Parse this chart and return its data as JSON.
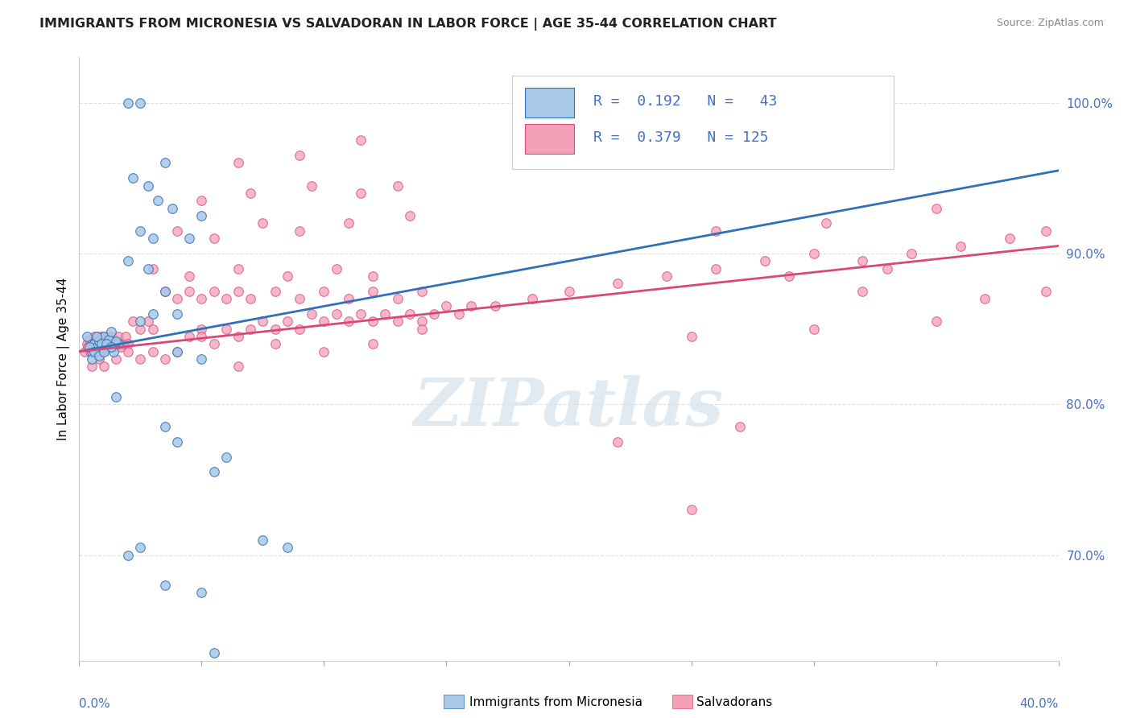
{
  "title": "IMMIGRANTS FROM MICRONESIA VS SALVADORAN IN LABOR FORCE | AGE 35-44 CORRELATION CHART",
  "source": "Source: ZipAtlas.com",
  "ylabel": "In Labor Force | Age 35-44",
  "yticks": [
    100.0,
    90.0,
    80.0,
    70.0
  ],
  "ytick_labels": [
    "100.0%",
    "90.0%",
    "80.0%",
    "70.0%"
  ],
  "xlim": [
    0.0,
    40.0
  ],
  "ylim": [
    63.0,
    103.0
  ],
  "blue_color": "#a8c8e8",
  "pink_color": "#f4a0b8",
  "blue_line_color": "#3070b8",
  "pink_line_color": "#d84878",
  "blue_scatter": [
    [
      0.5,
      83.5
    ],
    [
      0.6,
      84.0
    ],
    [
      0.7,
      83.8
    ],
    [
      0.8,
      84.2
    ],
    [
      0.9,
      83.5
    ],
    [
      1.0,
      84.5
    ],
    [
      1.1,
      83.8
    ],
    [
      1.2,
      84.3
    ],
    [
      1.4,
      83.5
    ],
    [
      1.6,
      84.0
    ],
    [
      0.3,
      84.5
    ],
    [
      0.4,
      83.8
    ],
    [
      1.3,
      84.8
    ],
    [
      1.5,
      84.2
    ],
    [
      0.5,
      83.0
    ],
    [
      0.6,
      83.5
    ],
    [
      0.7,
      84.5
    ],
    [
      0.8,
      83.2
    ],
    [
      0.9,
      84.0
    ],
    [
      1.0,
      83.5
    ],
    [
      1.1,
      84.0
    ],
    [
      1.3,
      83.8
    ],
    [
      2.5,
      100.0
    ],
    [
      2.0,
      100.0
    ],
    [
      3.5,
      96.0
    ],
    [
      2.8,
      94.5
    ],
    [
      2.2,
      95.0
    ],
    [
      3.2,
      93.5
    ],
    [
      3.8,
      93.0
    ],
    [
      2.5,
      91.5
    ],
    [
      3.0,
      91.0
    ],
    [
      4.5,
      91.0
    ],
    [
      5.0,
      92.5
    ],
    [
      2.0,
      89.5
    ],
    [
      2.8,
      89.0
    ],
    [
      3.5,
      87.5
    ],
    [
      4.0,
      86.0
    ],
    [
      2.5,
      85.5
    ],
    [
      3.0,
      86.0
    ],
    [
      4.0,
      83.5
    ],
    [
      5.0,
      83.0
    ],
    [
      1.5,
      80.5
    ],
    [
      3.5,
      78.5
    ],
    [
      4.0,
      77.5
    ],
    [
      5.5,
      75.5
    ],
    [
      6.0,
      76.5
    ],
    [
      2.5,
      70.5
    ],
    [
      7.5,
      71.0
    ],
    [
      2.0,
      70.0
    ],
    [
      8.5,
      70.5
    ],
    [
      3.5,
      68.0
    ],
    [
      5.0,
      67.5
    ],
    [
      5.5,
      63.5
    ]
  ],
  "pink_scatter": [
    [
      0.2,
      83.5
    ],
    [
      0.3,
      84.0
    ],
    [
      0.35,
      83.8
    ],
    [
      0.4,
      84.3
    ],
    [
      0.45,
      83.5
    ],
    [
      0.5,
      84.0
    ],
    [
      0.55,
      83.8
    ],
    [
      0.6,
      84.5
    ],
    [
      0.65,
      83.5
    ],
    [
      0.7,
      84.2
    ],
    [
      0.75,
      84.5
    ],
    [
      0.8,
      83.8
    ],
    [
      0.85,
      84.0
    ],
    [
      0.9,
      84.5
    ],
    [
      0.95,
      83.8
    ],
    [
      1.0,
      84.2
    ],
    [
      1.05,
      84.5
    ],
    [
      1.1,
      83.8
    ],
    [
      1.15,
      84.0
    ],
    [
      1.2,
      84.5
    ],
    [
      1.25,
      83.8
    ],
    [
      1.3,
      84.0
    ],
    [
      1.35,
      84.5
    ],
    [
      1.4,
      83.8
    ],
    [
      1.5,
      84.0
    ],
    [
      1.6,
      84.5
    ],
    [
      1.7,
      83.8
    ],
    [
      1.8,
      84.0
    ],
    [
      1.9,
      84.5
    ],
    [
      2.0,
      84.0
    ],
    [
      2.2,
      85.5
    ],
    [
      2.5,
      85.0
    ],
    [
      2.8,
      85.5
    ],
    [
      3.0,
      85.0
    ],
    [
      0.5,
      82.5
    ],
    [
      0.8,
      83.0
    ],
    [
      1.0,
      82.5
    ],
    [
      1.5,
      83.0
    ],
    [
      2.0,
      83.5
    ],
    [
      2.5,
      83.0
    ],
    [
      3.0,
      83.5
    ],
    [
      3.5,
      83.0
    ],
    [
      4.0,
      83.5
    ],
    [
      4.5,
      84.5
    ],
    [
      5.0,
      85.0
    ],
    [
      5.5,
      84.0
    ],
    [
      6.0,
      85.0
    ],
    [
      6.5,
      84.5
    ],
    [
      7.0,
      85.0
    ],
    [
      7.5,
      85.5
    ],
    [
      8.0,
      85.0
    ],
    [
      8.5,
      85.5
    ],
    [
      9.0,
      85.0
    ],
    [
      9.5,
      86.0
    ],
    [
      10.0,
      85.5
    ],
    [
      10.5,
      86.0
    ],
    [
      11.0,
      85.5
    ],
    [
      11.5,
      86.0
    ],
    [
      12.0,
      85.5
    ],
    [
      12.5,
      86.0
    ],
    [
      13.0,
      85.5
    ],
    [
      13.5,
      86.0
    ],
    [
      14.0,
      85.5
    ],
    [
      14.5,
      86.0
    ],
    [
      15.0,
      86.5
    ],
    [
      15.5,
      86.0
    ],
    [
      16.0,
      86.5
    ],
    [
      3.5,
      87.5
    ],
    [
      4.0,
      87.0
    ],
    [
      4.5,
      87.5
    ],
    [
      5.0,
      87.0
    ],
    [
      5.5,
      87.5
    ],
    [
      6.0,
      87.0
    ],
    [
      6.5,
      87.5
    ],
    [
      7.0,
      87.0
    ],
    [
      8.0,
      87.5
    ],
    [
      9.0,
      87.0
    ],
    [
      10.0,
      87.5
    ],
    [
      11.0,
      87.0
    ],
    [
      12.0,
      87.5
    ],
    [
      13.0,
      87.0
    ],
    [
      14.0,
      87.5
    ],
    [
      3.0,
      89.0
    ],
    [
      4.5,
      88.5
    ],
    [
      6.5,
      89.0
    ],
    [
      8.5,
      88.5
    ],
    [
      10.5,
      89.0
    ],
    [
      12.0,
      88.5
    ],
    [
      4.0,
      91.5
    ],
    [
      5.5,
      91.0
    ],
    [
      7.5,
      92.0
    ],
    [
      9.0,
      91.5
    ],
    [
      11.0,
      92.0
    ],
    [
      13.5,
      92.5
    ],
    [
      5.0,
      93.5
    ],
    [
      7.0,
      94.0
    ],
    [
      9.5,
      94.5
    ],
    [
      11.5,
      94.0
    ],
    [
      13.0,
      94.5
    ],
    [
      6.5,
      96.0
    ],
    [
      9.0,
      96.5
    ],
    [
      11.5,
      97.5
    ],
    [
      5.0,
      84.5
    ],
    [
      6.5,
      82.5
    ],
    [
      8.0,
      84.0
    ],
    [
      10.0,
      83.5
    ],
    [
      12.0,
      84.0
    ],
    [
      14.0,
      85.0
    ],
    [
      17.0,
      86.5
    ],
    [
      18.5,
      87.0
    ],
    [
      20.0,
      87.5
    ],
    [
      22.0,
      88.0
    ],
    [
      24.0,
      88.5
    ],
    [
      26.0,
      89.0
    ],
    [
      28.0,
      89.5
    ],
    [
      30.0,
      90.0
    ],
    [
      32.0,
      89.5
    ],
    [
      34.0,
      90.0
    ],
    [
      36.0,
      90.5
    ],
    [
      38.0,
      91.0
    ],
    [
      39.5,
      91.5
    ],
    [
      25.0,
      84.5
    ],
    [
      30.0,
      85.0
    ],
    [
      35.0,
      85.5
    ],
    [
      26.0,
      91.5
    ],
    [
      30.5,
      92.0
    ],
    [
      35.0,
      93.0
    ],
    [
      29.0,
      88.5
    ],
    [
      33.0,
      89.0
    ],
    [
      22.0,
      77.5
    ],
    [
      27.0,
      78.5
    ],
    [
      25.0,
      73.0
    ],
    [
      32.0,
      87.5
    ],
    [
      37.0,
      87.0
    ],
    [
      39.5,
      87.5
    ]
  ],
  "watermark_text": "ZIPatlas",
  "background_color": "#ffffff",
  "grid_color": "#e0e0e0",
  "title_color": "#222222",
  "source_color": "#888888",
  "ytick_color": "#4472c4",
  "xtick_color": "#4472c4"
}
